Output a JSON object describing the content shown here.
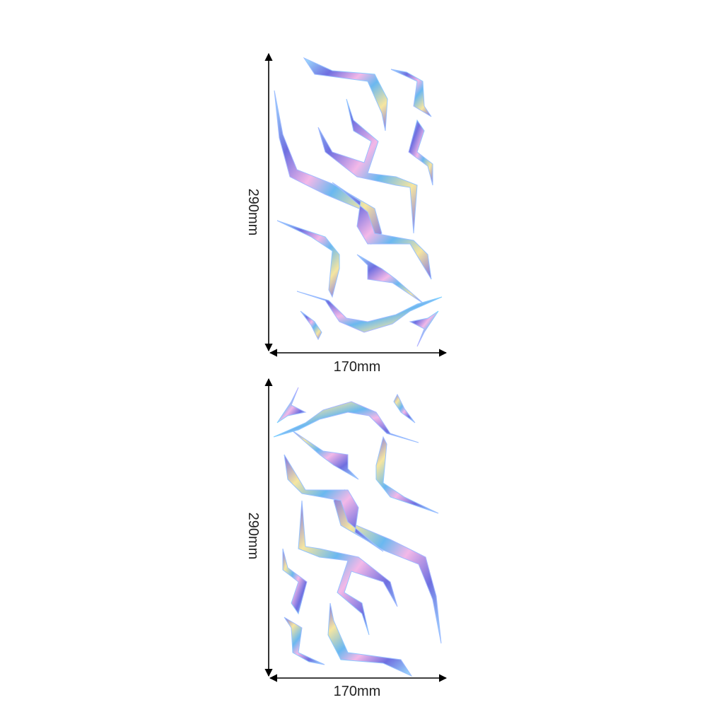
{
  "panels": [
    {
      "height_label": "290mm",
      "width_label": "170mm"
    },
    {
      "height_label": "290mm",
      "width_label": "170mm"
    }
  ]
}
